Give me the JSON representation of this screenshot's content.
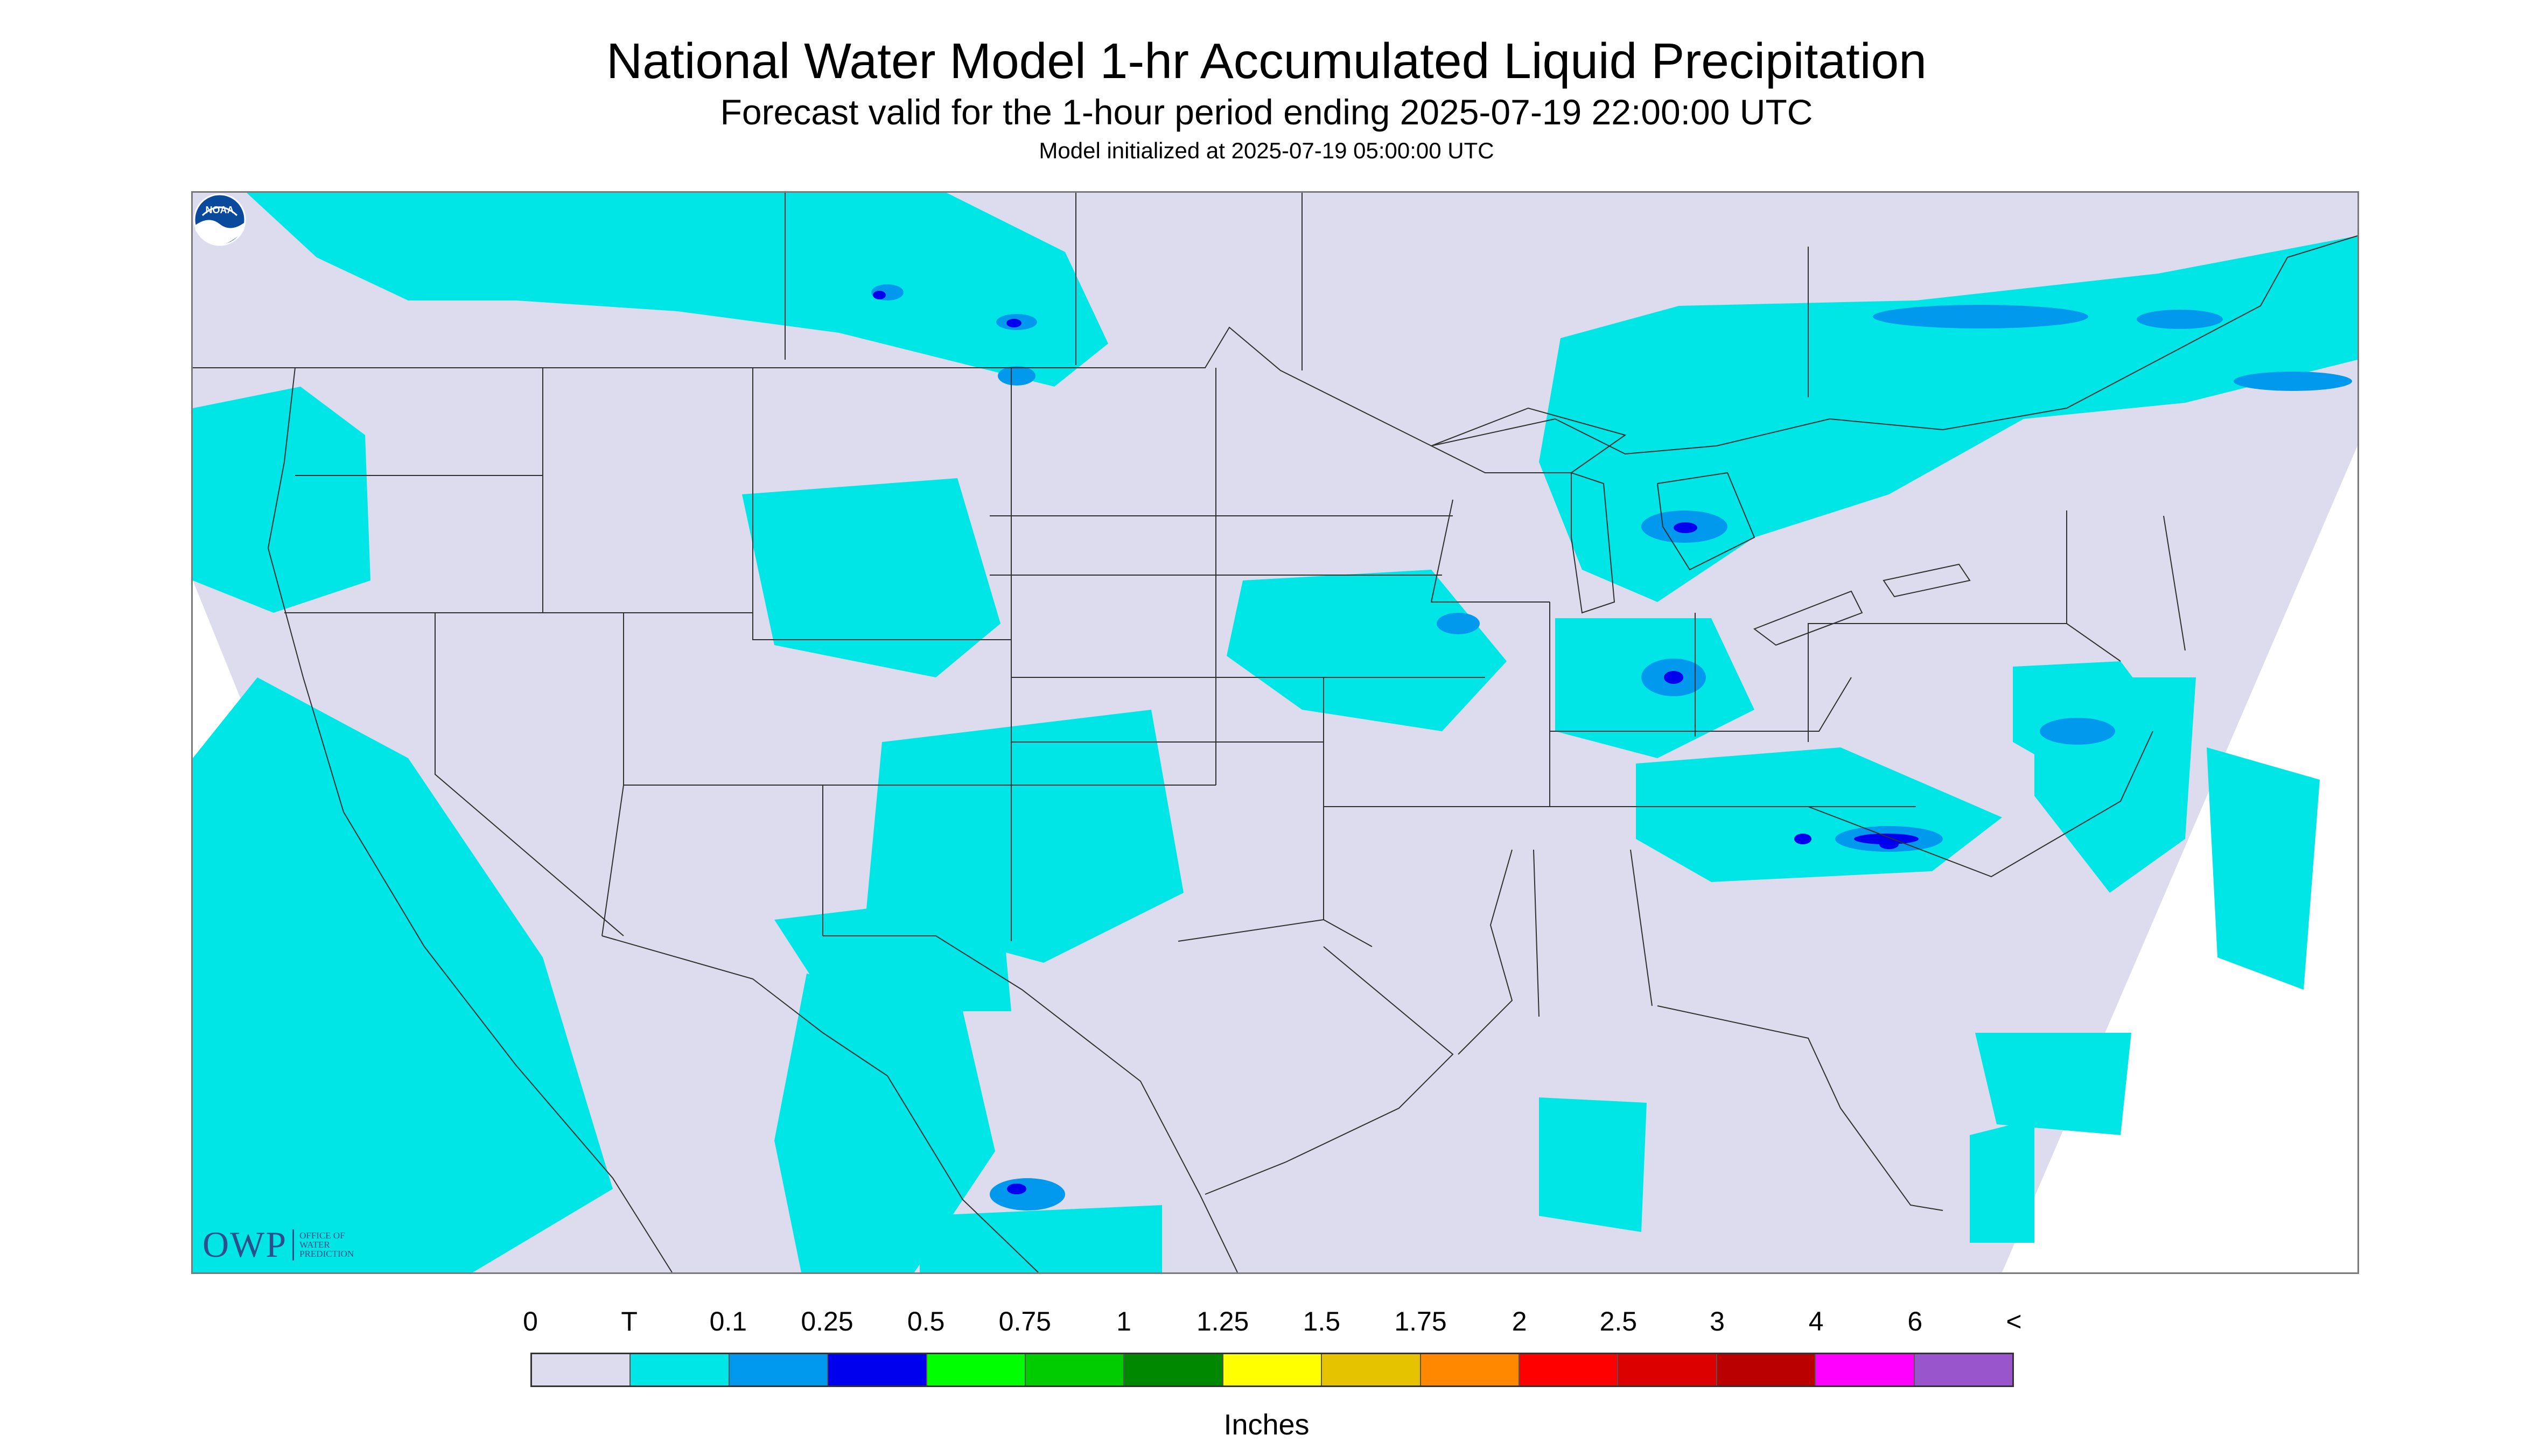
{
  "header": {
    "title": "National Water Model 1-hr Accumulated Liquid Precipitation",
    "subtitle": "Forecast valid for the 1-hour period ending 2025-07-19 22:00:00 UTC",
    "model_init": "Model initialized at 2025-07-19 05:00:00 UTC"
  },
  "logos": {
    "owp_letters": "OWP",
    "owp_subtext": [
      "OFFICE OF",
      "WATER",
      "PREDICTION"
    ],
    "noaa_text": "NOAA"
  },
  "colors": {
    "no_data_area": "#ffffff",
    "map_background": "#dcdcee",
    "boundaries": "#303030"
  },
  "legend": {
    "labels": [
      "0",
      "T",
      "0.1",
      "0.25",
      "0.5",
      "0.75",
      "1",
      "1.25",
      "1.5",
      "1.75",
      "2",
      "2.5",
      "3",
      "4",
      "6",
      "<"
    ],
    "colors": [
      "#dcdcee",
      "#00e6e6",
      "#0099ee",
      "#0000ee",
      "#00ff00",
      "#00cc00",
      "#008800",
      "#ffff00",
      "#e6c300",
      "#ff8800",
      "#ff0000",
      "#dd0000",
      "#bb0000",
      "#ff00ff",
      "#9955cc"
    ],
    "units": "Inches"
  }
}
